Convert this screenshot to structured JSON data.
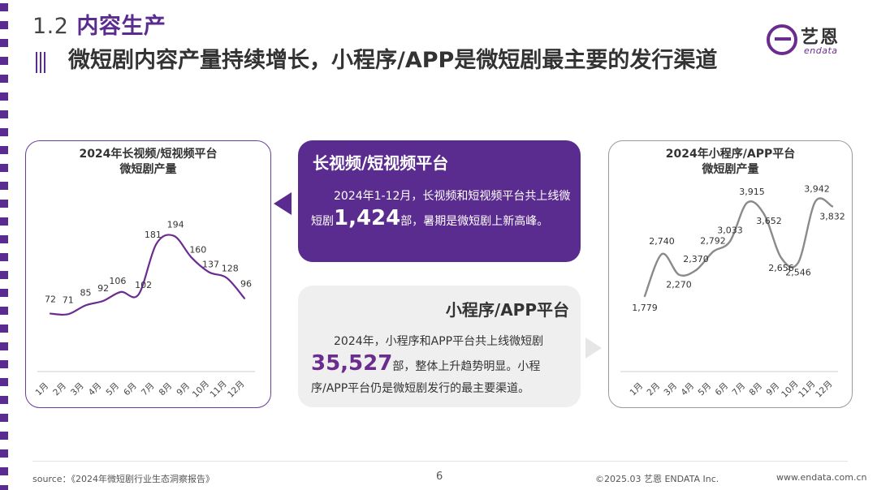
{
  "section": {
    "number": "1.2",
    "title": "内容生产"
  },
  "headline": "微短剧内容产量持续增长，小程序/APP是微短剧最主要的发行渠道",
  "logo": {
    "cn": "艺恩",
    "en": "endata"
  },
  "colors": {
    "brand_purple": "#5b2c8f",
    "card_gray": "#efefef",
    "line": "#6b2c8f",
    "right_line": "#8a8a8a"
  },
  "card_long_short": {
    "title": "长视频/短视频平台",
    "text_before": "2024年1-12月，长视频和短视频平台共上线微短剧",
    "highlight": "1,424",
    "text_after": "部，暑期是微短剧上新高峰。"
  },
  "card_miniapp": {
    "title": "小程序/APP平台",
    "text_before": "2024年，小程序和APP平台共上线微短剧",
    "highlight": "35,527",
    "text_after": "部，整体上升趋势明显。小程序/APP平台仍是微短剧发行的最主要渠道。"
  },
  "chart_data": [
    {
      "type": "line",
      "title_line1": "2024年长视频/短视频平台",
      "title_line2": "微短剧产量",
      "categories": [
        "1月",
        "2月",
        "3月",
        "4月",
        "5月",
        "6月",
        "7月",
        "8月",
        "9月",
        "10月",
        "11月",
        "12月"
      ],
      "values": [
        72,
        71,
        85,
        92,
        106,
        102,
        181,
        194,
        160,
        137,
        128,
        96
      ],
      "labels": [
        "72",
        "71",
        "85",
        "92",
        "106",
        "102",
        "181",
        "194",
        "160",
        "137",
        "128",
        "96"
      ],
      "ylim": [
        0,
        340
      ],
      "smooth": true,
      "color": "#6b2c8f"
    },
    {
      "type": "line",
      "title_line1": "2024年小程序/APP平台",
      "title_line2": "微短剧产量",
      "categories": [
        "1月",
        "2月",
        "3月",
        "4月",
        "5月",
        "6月",
        "7月",
        "8月",
        "9月",
        "10月",
        "11月",
        "12月"
      ],
      "values": [
        1779,
        2740,
        2270,
        2370,
        2792,
        3033,
        3915,
        3652,
        2656,
        2546,
        3942,
        3832
      ],
      "labels": [
        "1,779",
        "2,740",
        "2,270",
        "2,370",
        "2,792",
        "3,033",
        "3,915",
        "3,652",
        "2,656",
        "2,546",
        "3,942",
        "3,832"
      ],
      "ylim": [
        0,
        5000
      ],
      "smooth": true,
      "color": "#8a8a8a"
    }
  ],
  "footer": {
    "source": "source：《2024年微短剧行业生态洞察报告》",
    "page": "6",
    "copyright": "©2025.03  艺恩 ENDATA Inc.",
    "website": "www.endata.com.cn"
  }
}
